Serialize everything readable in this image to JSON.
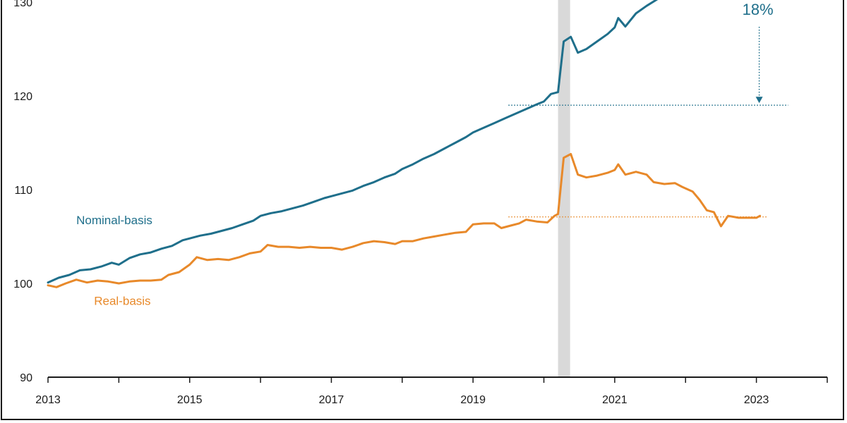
{
  "chart_data": {
    "type": "line",
    "xlim": [
      2013,
      2024
    ],
    "ylim": [
      90,
      130
    ],
    "y_ticks": [
      "90",
      "100",
      "110",
      "120",
      "130"
    ],
    "x_ticks": [
      "2013",
      "2015",
      "2017",
      "2019",
      "2021",
      "2023"
    ],
    "grid": false,
    "shaded_band": {
      "x": [
        2020.2,
        2020.37
      ],
      "color": "#d9d9d9"
    },
    "colors": {
      "nominal": "#1f6f8b",
      "real": "#e8892a"
    },
    "series": [
      {
        "name": "Nominal-basis",
        "label_x": 2013.4,
        "label_y": 106.3,
        "points": [
          [
            2013.0,
            100.1
          ],
          [
            2013.15,
            100.6
          ],
          [
            2013.3,
            100.9
          ],
          [
            2013.45,
            101.4
          ],
          [
            2013.6,
            101.5
          ],
          [
            2013.75,
            101.8
          ],
          [
            2013.9,
            102.2
          ],
          [
            2014.0,
            102.0
          ],
          [
            2014.15,
            102.7
          ],
          [
            2014.3,
            103.1
          ],
          [
            2014.45,
            103.3
          ],
          [
            2014.6,
            103.7
          ],
          [
            2014.75,
            104.0
          ],
          [
            2014.9,
            104.6
          ],
          [
            2015.0,
            104.8
          ],
          [
            2015.15,
            105.1
          ],
          [
            2015.3,
            105.3
          ],
          [
            2015.45,
            105.6
          ],
          [
            2015.6,
            105.9
          ],
          [
            2015.75,
            106.3
          ],
          [
            2015.9,
            106.7
          ],
          [
            2016.0,
            107.2
          ],
          [
            2016.15,
            107.5
          ],
          [
            2016.3,
            107.7
          ],
          [
            2016.45,
            108.0
          ],
          [
            2016.6,
            108.3
          ],
          [
            2016.75,
            108.7
          ],
          [
            2016.9,
            109.1
          ],
          [
            2017.0,
            109.3
          ],
          [
            2017.15,
            109.6
          ],
          [
            2017.3,
            109.9
          ],
          [
            2017.45,
            110.4
          ],
          [
            2017.6,
            110.8
          ],
          [
            2017.75,
            111.3
          ],
          [
            2017.9,
            111.7
          ],
          [
            2018.0,
            112.2
          ],
          [
            2018.15,
            112.7
          ],
          [
            2018.3,
            113.3
          ],
          [
            2018.45,
            113.8
          ],
          [
            2018.6,
            114.4
          ],
          [
            2018.75,
            115.0
          ],
          [
            2018.9,
            115.6
          ],
          [
            2019.0,
            116.1
          ],
          [
            2019.15,
            116.6
          ],
          [
            2019.3,
            117.1
          ],
          [
            2019.45,
            117.6
          ],
          [
            2019.6,
            118.1
          ],
          [
            2019.75,
            118.6
          ],
          [
            2019.9,
            119.1
          ],
          [
            2020.0,
            119.4
          ],
          [
            2020.1,
            120.2
          ],
          [
            2020.2,
            120.4
          ],
          [
            2020.28,
            125.8
          ],
          [
            2020.38,
            126.3
          ],
          [
            2020.48,
            124.6
          ],
          [
            2020.6,
            125.0
          ],
          [
            2020.75,
            125.8
          ],
          [
            2020.9,
            126.6
          ],
          [
            2021.0,
            127.3
          ],
          [
            2021.05,
            128.3
          ],
          [
            2021.15,
            127.4
          ],
          [
            2021.3,
            128.8
          ],
          [
            2021.45,
            129.6
          ],
          [
            2021.6,
            130.3
          ],
          [
            2021.75,
            131.0
          ],
          [
            2021.9,
            131.7
          ],
          [
            2022.0,
            132.5
          ]
        ]
      },
      {
        "name": "Real-basis",
        "label_x": 2013.65,
        "label_y": 97.7,
        "points": [
          [
            2013.0,
            99.8
          ],
          [
            2013.12,
            99.6
          ],
          [
            2013.25,
            100.0
          ],
          [
            2013.4,
            100.4
          ],
          [
            2013.55,
            100.1
          ],
          [
            2013.7,
            100.3
          ],
          [
            2013.85,
            100.2
          ],
          [
            2014.0,
            100.0
          ],
          [
            2014.15,
            100.2
          ],
          [
            2014.3,
            100.3
          ],
          [
            2014.45,
            100.3
          ],
          [
            2014.6,
            100.4
          ],
          [
            2014.7,
            100.9
          ],
          [
            2014.85,
            101.2
          ],
          [
            2015.0,
            102.0
          ],
          [
            2015.1,
            102.8
          ],
          [
            2015.25,
            102.5
          ],
          [
            2015.4,
            102.6
          ],
          [
            2015.55,
            102.5
          ],
          [
            2015.7,
            102.8
          ],
          [
            2015.85,
            103.2
          ],
          [
            2016.0,
            103.4
          ],
          [
            2016.1,
            104.1
          ],
          [
            2016.25,
            103.9
          ],
          [
            2016.4,
            103.9
          ],
          [
            2016.55,
            103.8
          ],
          [
            2016.7,
            103.9
          ],
          [
            2016.85,
            103.8
          ],
          [
            2017.0,
            103.8
          ],
          [
            2017.15,
            103.6
          ],
          [
            2017.3,
            103.9
          ],
          [
            2017.45,
            104.3
          ],
          [
            2017.6,
            104.5
          ],
          [
            2017.75,
            104.4
          ],
          [
            2017.9,
            104.2
          ],
          [
            2018.0,
            104.5
          ],
          [
            2018.15,
            104.5
          ],
          [
            2018.3,
            104.8
          ],
          [
            2018.45,
            105.0
          ],
          [
            2018.6,
            105.2
          ],
          [
            2018.75,
            105.4
          ],
          [
            2018.9,
            105.5
          ],
          [
            2019.0,
            106.3
          ],
          [
            2019.15,
            106.4
          ],
          [
            2019.3,
            106.4
          ],
          [
            2019.4,
            105.9
          ],
          [
            2019.55,
            106.2
          ],
          [
            2019.65,
            106.4
          ],
          [
            2019.75,
            106.8
          ],
          [
            2019.9,
            106.6
          ],
          [
            2020.05,
            106.5
          ],
          [
            2020.15,
            107.2
          ],
          [
            2020.2,
            107.4
          ],
          [
            2020.28,
            113.4
          ],
          [
            2020.38,
            113.8
          ],
          [
            2020.48,
            111.6
          ],
          [
            2020.6,
            111.3
          ],
          [
            2020.75,
            111.5
          ],
          [
            2020.9,
            111.8
          ],
          [
            2021.0,
            112.1
          ],
          [
            2021.05,
            112.7
          ],
          [
            2021.15,
            111.6
          ],
          [
            2021.3,
            111.9
          ],
          [
            2021.45,
            111.6
          ],
          [
            2021.55,
            110.8
          ],
          [
            2021.7,
            110.6
          ],
          [
            2021.85,
            110.7
          ],
          [
            2021.95,
            110.3
          ],
          [
            2022.1,
            109.8
          ],
          [
            2022.2,
            108.9
          ],
          [
            2022.3,
            107.8
          ],
          [
            2022.4,
            107.6
          ],
          [
            2022.5,
            106.1
          ],
          [
            2022.6,
            107.2
          ],
          [
            2022.75,
            107.0
          ],
          [
            2022.9,
            107.0
          ],
          [
            2023.0,
            107.0
          ],
          [
            2023.05,
            107.2
          ]
        ]
      }
    ],
    "reference_lines": [
      {
        "series": "Nominal-basis",
        "y": 119.0,
        "x_start": 2019.5,
        "x_end": 2023.45,
        "style": "dotted"
      },
      {
        "series": "Real-basis",
        "y": 107.1,
        "x_start": 2019.5,
        "x_end": 2023.15,
        "style": "dotted"
      }
    ],
    "annotations": [
      {
        "text": "18%",
        "x": 2023.0,
        "y": 130,
        "arrow_to_y": 119.0
      }
    ]
  }
}
